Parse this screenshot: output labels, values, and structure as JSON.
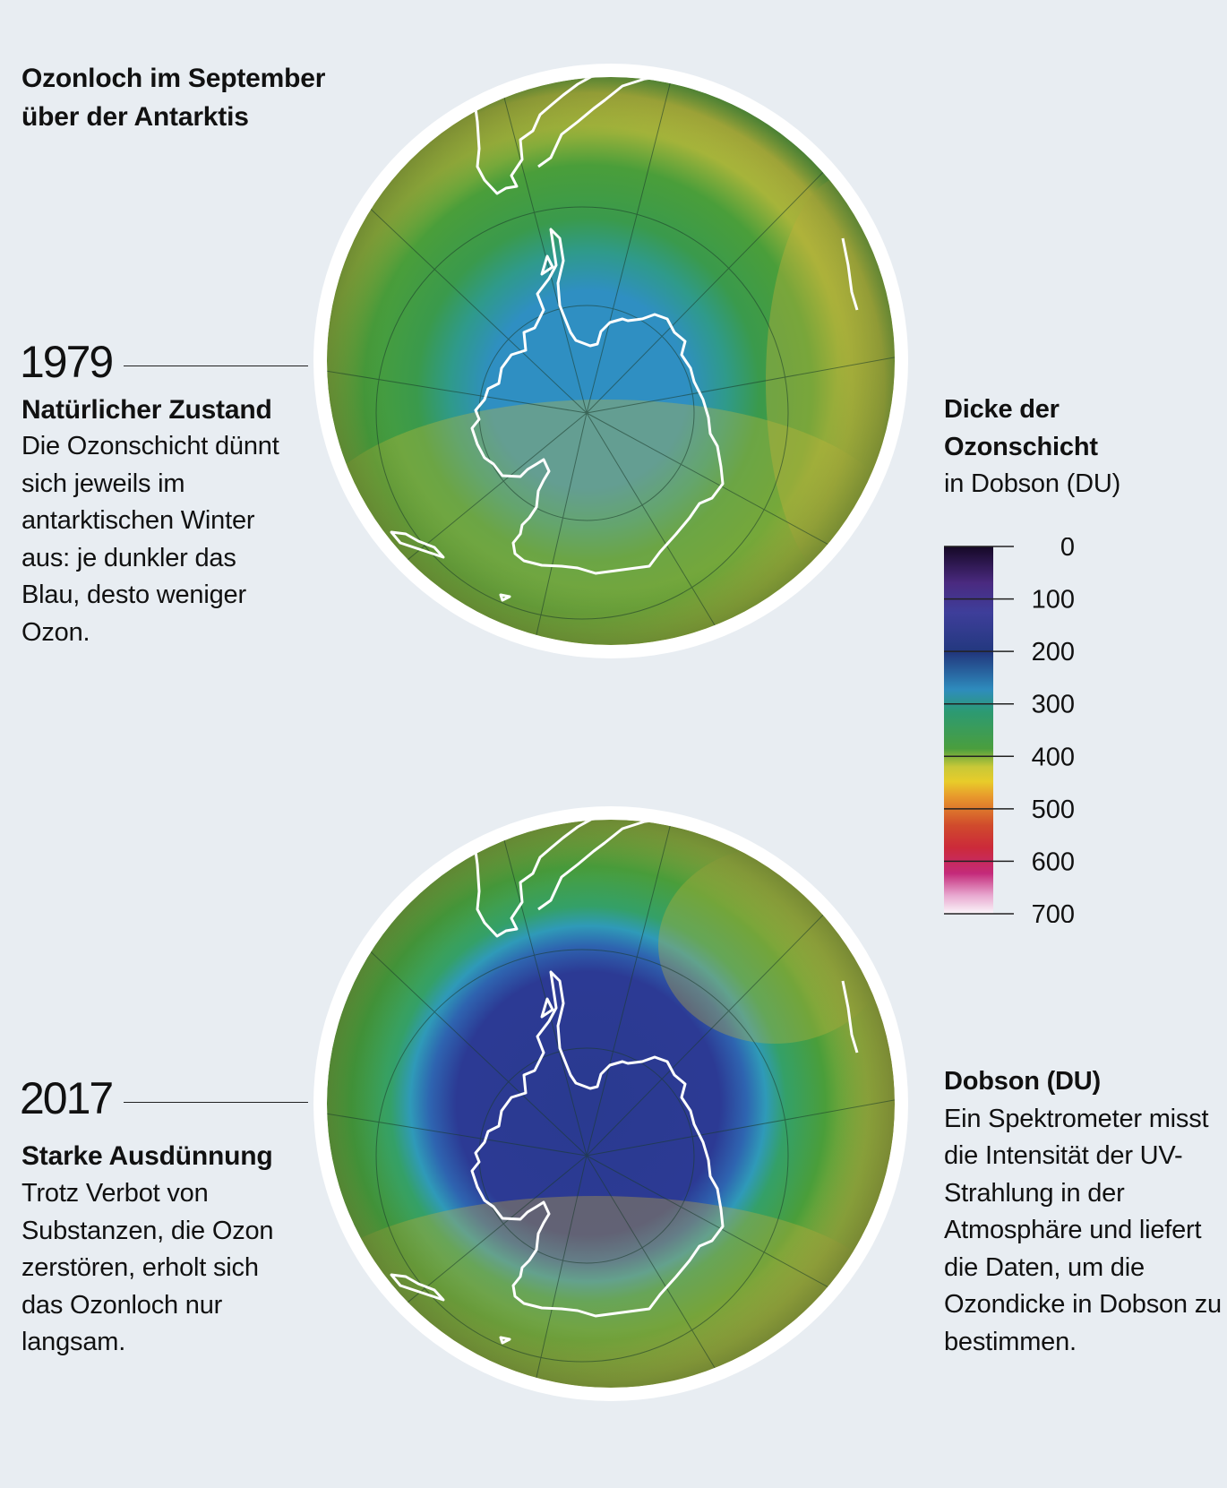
{
  "title": "Ozonloch im September\nüber der Antarktis",
  "panels": [
    {
      "year": "1979",
      "heading": "Natürlicher Zustand",
      "text": "Die Ozonschicht dünnt sich jeweils im antarktischen Winter aus: je dunkler das Blau, desto weniger Ozon."
    },
    {
      "year": "2017",
      "heading": "Starke Ausdünnung",
      "text": "Trotz Verbot von Substanzen, die Ozon zerstören, erholt sich das Ozonloch nur langsam."
    }
  ],
  "legend": {
    "title": "Dicke der\nOzonschicht",
    "subtitle": "in Dobson (DU)",
    "ticks": [
      "0",
      "100",
      "200",
      "300",
      "400",
      "500",
      "600",
      "700"
    ],
    "colors": [
      "#1a0a2e",
      "#5a3a9a",
      "#2c3590",
      "#2e8fc0",
      "#3a9a48",
      "#e0d030",
      "#e8902a",
      "#c83030",
      "#c82c7a",
      "#f4f0f4"
    ]
  },
  "note": {
    "heading": "Dobson (DU)",
    "text": "Ein Spektrometer misst die Intensität der UV-Strahlung in der Atmosphäre und liefert die Daten, um die Ozondicke in Dobson zu bestimmen."
  }
}
